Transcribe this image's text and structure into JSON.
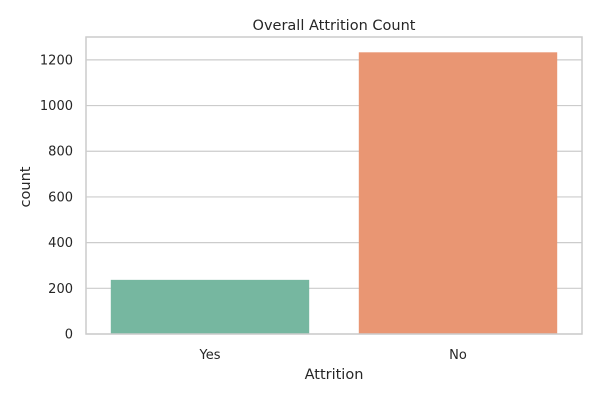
{
  "chart_data": {
    "type": "bar",
    "title": "Overall Attrition Count",
    "xlabel": "Attrition",
    "ylabel": "count",
    "categories": [
      "Yes",
      "No"
    ],
    "values": [
      237,
      1233
    ],
    "ylim": [
      0,
      1300
    ],
    "yticks": [
      0,
      200,
      400,
      600,
      800,
      1000,
      1200
    ],
    "grid": true,
    "legend": "none",
    "colors": [
      "#76b7a0",
      "#e99673"
    ],
    "grid_color": "#cccccc",
    "spine_color": "#cccccc"
  }
}
